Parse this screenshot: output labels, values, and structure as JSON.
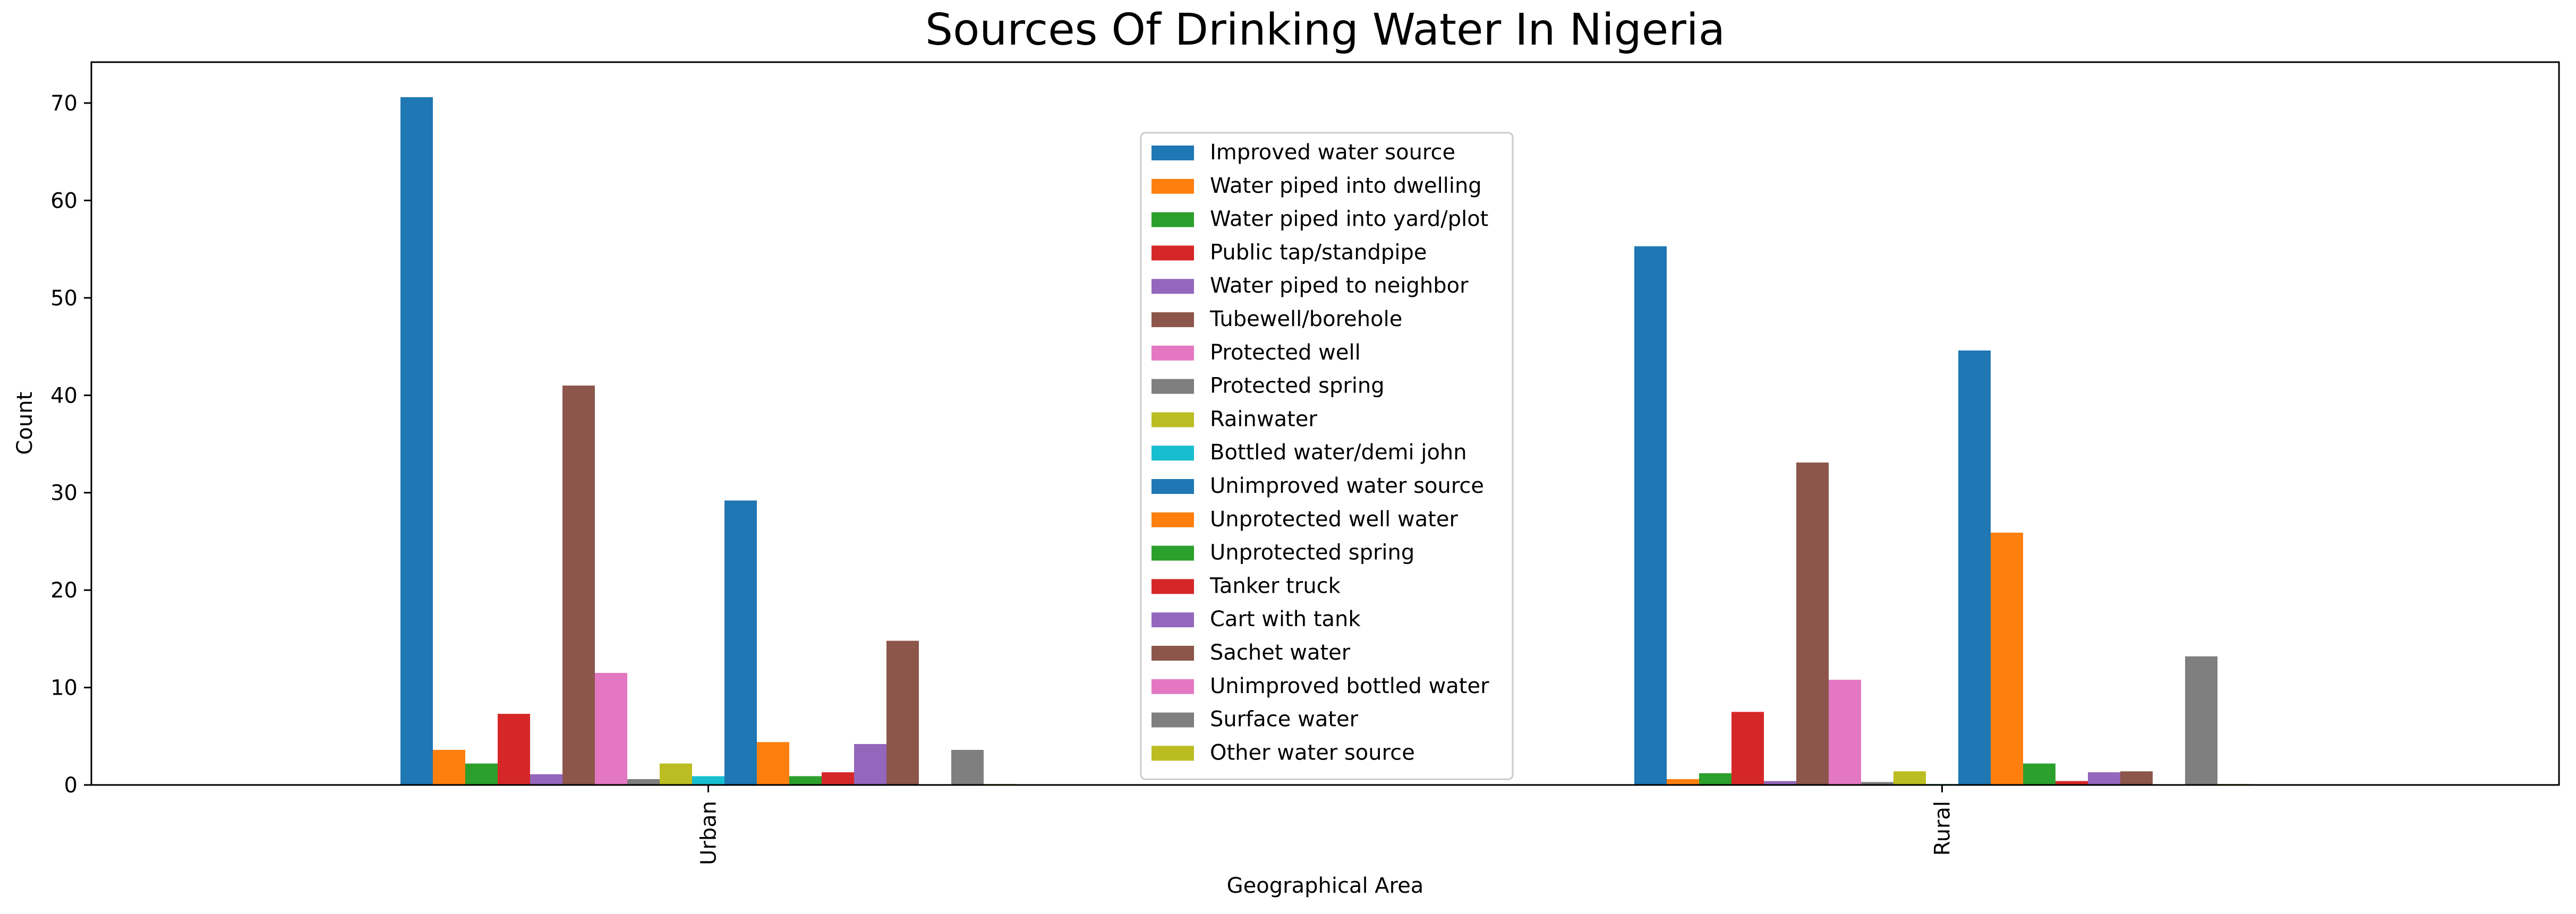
{
  "chart_data": {
    "type": "bar",
    "title": "Sources Of Drinking Water In Nigeria",
    "xlabel": "Geographical Area",
    "ylabel": "Count",
    "categories": [
      "Urban",
      "Rural"
    ],
    "ylim": [
      0,
      74.2
    ],
    "yticks": [
      0,
      10,
      20,
      30,
      40,
      50,
      60,
      70
    ],
    "legend_position": "upper-center",
    "grid": false,
    "series": [
      {
        "name": "Improved water source",
        "color": "#1f77b4",
        "values": [
          70.6,
          55.3
        ]
      },
      {
        "name": "Water piped into dwelling",
        "color": "#ff7f0e",
        "values": [
          3.6,
          0.6
        ]
      },
      {
        "name": "Water piped into yard/plot",
        "color": "#2ca02c",
        "values": [
          2.2,
          1.2
        ]
      },
      {
        "name": "Public tap/standpipe",
        "color": "#d62728",
        "values": [
          7.3,
          7.5
        ]
      },
      {
        "name": "Water piped to neighbor",
        "color": "#9467bd",
        "values": [
          1.1,
          0.4
        ]
      },
      {
        "name": "Tubewell/borehole",
        "color": "#8c564b",
        "values": [
          41.0,
          33.1
        ]
      },
      {
        "name": "Protected well",
        "color": "#e377c2",
        "values": [
          11.5,
          10.8
        ]
      },
      {
        "name": "Protected spring",
        "color": "#7f7f7f",
        "values": [
          0.6,
          0.3
        ]
      },
      {
        "name": "Rainwater",
        "color": "#bcbd22",
        "values": [
          2.2,
          1.4
        ]
      },
      {
        "name": " Bottled water/demi john",
        "color": "#17becf",
        "values": [
          0.9,
          0.1
        ]
      },
      {
        "name": "Unimproved water source",
        "color": "#1f77b4",
        "values": [
          29.2,
          44.6
        ]
      },
      {
        "name": "Unprotected well water",
        "color": "#ff7f0e",
        "values": [
          4.4,
          25.9
        ]
      },
      {
        "name": "Unprotected spring",
        "color": "#2ca02c",
        "values": [
          0.9,
          2.2
        ]
      },
      {
        "name": "Tanker truck",
        "color": "#d62728",
        "values": [
          1.3,
          0.4
        ]
      },
      {
        "name": "Cart with tank",
        "color": "#9467bd",
        "values": [
          4.2,
          1.3
        ]
      },
      {
        "name": "Sachet water",
        "color": "#8c564b",
        "values": [
          14.8,
          1.4
        ]
      },
      {
        "name": "Unimproved bottled water",
        "color": "#e377c2",
        "values": [
          0.0,
          0.0
        ]
      },
      {
        "name": "Surface water",
        "color": "#7f7f7f",
        "values": [
          3.6,
          13.2
        ]
      },
      {
        "name": "Other water source",
        "color": "#bcbd22",
        "values": [
          0.1,
          0.1
        ]
      }
    ]
  }
}
